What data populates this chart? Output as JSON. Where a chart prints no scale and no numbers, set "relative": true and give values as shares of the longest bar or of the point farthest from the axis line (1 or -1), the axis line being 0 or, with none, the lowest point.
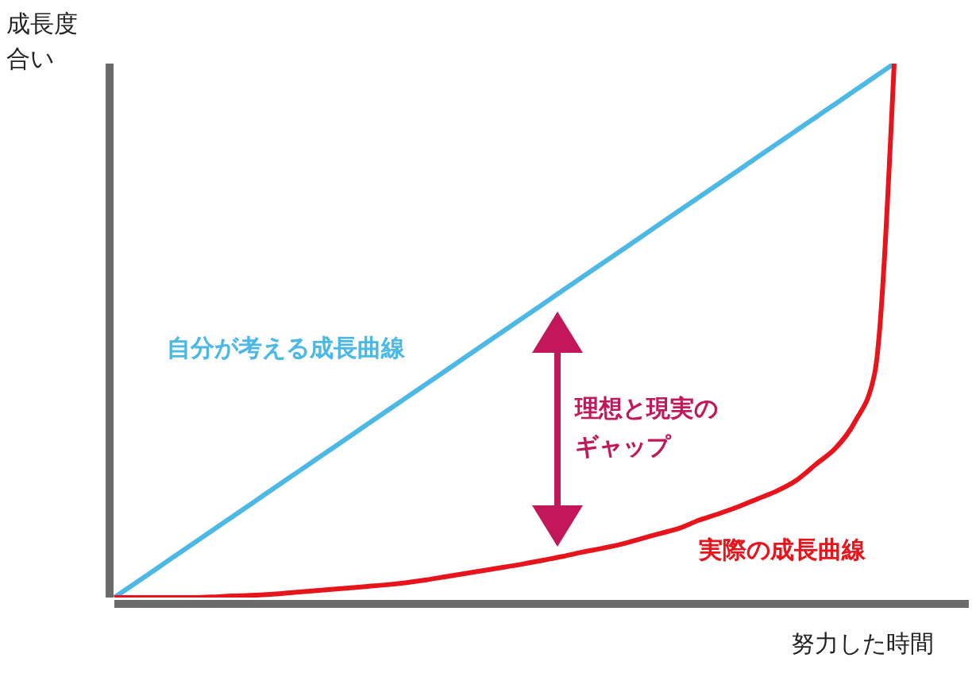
{
  "chart_data": {
    "type": "line",
    "relative": true,
    "ylabel": "成長度合い",
    "xlabel": "努力した時間",
    "annotations": [
      "理想と現実のギャップ"
    ],
    "categories": [
      null,
      null,
      null,
      null,
      null,
      null,
      null,
      null,
      null,
      null,
      null,
      null,
      null,
      null,
      null,
      null,
      null,
      null,
      null,
      null,
      null,
      null,
      null,
      null,
      null,
      null,
      null,
      null,
      null,
      null,
      null,
      null,
      null,
      null,
      null,
      null,
      null,
      null,
      null,
      null,
      null
    ],
    "series": [
      {
        "name": "自分が考える成長曲線",
        "color": "#4cb8e6",
        "values": [
          0,
          0.025,
          0.05,
          0.075,
          0.1,
          0.125,
          0.15,
          0.175,
          0.2,
          0.225,
          0.25,
          0.275,
          0.3,
          0.325,
          0.35,
          0.375,
          0.4,
          0.425,
          0.45,
          0.475,
          0.5,
          0.525,
          0.55,
          0.575,
          0.6,
          0.625,
          0.65,
          0.675,
          0.7,
          0.725,
          0.75,
          0.775,
          0.8,
          0.825,
          0.85,
          0.875,
          0.9,
          0.925,
          0.95,
          0.975,
          1
        ]
      },
      {
        "name": "実際の成長曲線",
        "color": "#e8141c",
        "values": [
          0,
          0,
          0,
          0,
          0,
          0.001,
          0.003,
          0.004,
          0.006,
          0.009,
          0.012,
          0.015,
          0.018,
          0.021,
          0.024,
          0.028,
          0.033,
          0.039,
          0.045,
          0.051,
          0.057,
          0.063,
          0.07,
          0.077,
          0.085,
          0.092,
          0.1,
          0.11,
          0.12,
          0.13,
          0.145,
          0.157,
          0.17,
          0.185,
          0.2,
          0.22,
          0.25,
          0.28,
          0.33,
          0.42,
          1
        ]
      }
    ],
    "legend": false,
    "grid": false,
    "marker": "none"
  }
}
